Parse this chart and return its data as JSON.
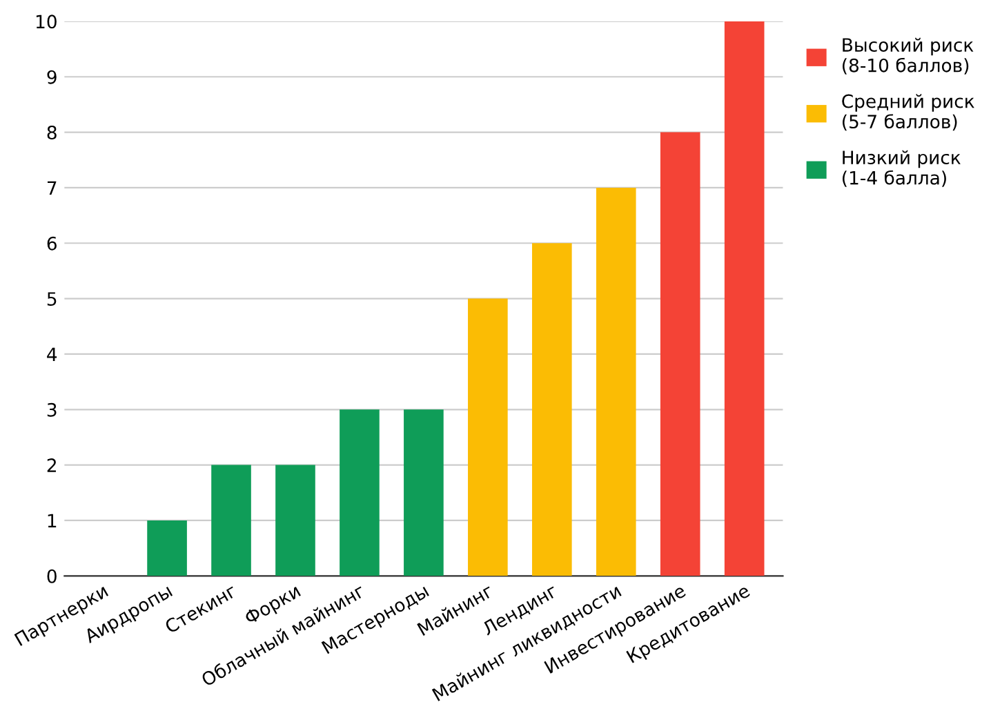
{
  "chart_data": {
    "type": "bar",
    "categories": [
      "Партнерки",
      "Аирдропы",
      "Стекинг",
      "Форки",
      "Облачный майнинг",
      "Мастерноды",
      "Майнинг",
      "Лендинг",
      "Майнинг ликвидности",
      "Инвестирование",
      "Кредитование"
    ],
    "series": [
      {
        "name": "Высокий риск\n(8-10 баллов)",
        "color": "#f44336",
        "values": [
          null,
          null,
          null,
          null,
          null,
          null,
          null,
          null,
          null,
          8,
          10
        ]
      },
      {
        "name": "Средний риск\n(5-7 баллов)",
        "color": "#fbbc04",
        "values": [
          null,
          null,
          null,
          null,
          null,
          null,
          5,
          6,
          7,
          null,
          null
        ]
      },
      {
        "name": "Низкий риск\n(1-4 балла)",
        "color": "#0f9d58",
        "values": [
          0,
          1,
          2,
          2,
          3,
          3,
          null,
          null,
          null,
          null,
          null
        ]
      }
    ],
    "ylim": [
      0,
      10
    ],
    "yticks": [
      0,
      1,
      2,
      3,
      4,
      5,
      6,
      7,
      8,
      9,
      10
    ],
    "grid": "y",
    "legend": "top right"
  }
}
